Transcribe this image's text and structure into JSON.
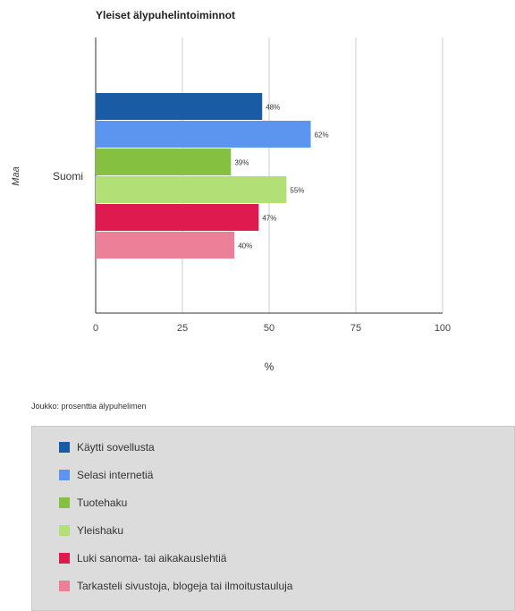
{
  "chart_data": {
    "type": "bar",
    "orientation": "horizontal",
    "title": "Yleiset älypuhelintoiminnot",
    "xlabel": "%",
    "ylabel": "Maa",
    "categories": [
      "Suomi"
    ],
    "xlim": [
      0,
      100
    ],
    "xticks": [
      "0",
      "25",
      "50",
      "75",
      "100"
    ],
    "grid": true,
    "legend_position": "bottom",
    "series": [
      {
        "name": "Käytti sovellusta",
        "values": [
          48
        ],
        "label": "48%",
        "color": "#1a5ba6"
      },
      {
        "name": "Selasi internetiä",
        "values": [
          62
        ],
        "label": "62%",
        "color": "#5b95f0"
      },
      {
        "name": "Tuotehaku",
        "values": [
          39
        ],
        "label": "39%",
        "color": "#86c041"
      },
      {
        "name": "Yleishaku",
        "values": [
          55
        ],
        "label": "55%",
        "color": "#b2e077"
      },
      {
        "name": "Luki sanoma- tai aikakauslehtiä",
        "values": [
          47
        ],
        "label": "47%",
        "color": "#df1a4e"
      },
      {
        "name": "Tarkasteli sivustoja, blogeja tai ilmoitustauluja",
        "values": [
          40
        ],
        "label": "40%",
        "color": "#ec8099"
      }
    ]
  },
  "footnote": "Joukko: prosenttia älypuhelimen"
}
